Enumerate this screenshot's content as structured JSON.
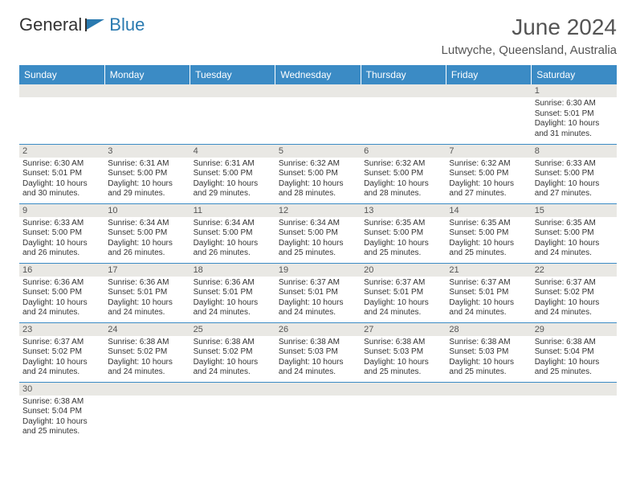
{
  "logo": {
    "part1": "General",
    "part2": "Blue"
  },
  "header": {
    "month_title": "June 2024",
    "location": "Lutwyche, Queensland, Australia"
  },
  "colors": {
    "header_bg": "#3b8bc5",
    "header_text": "#ffffff",
    "daynum_bg": "#e9e8e4",
    "border": "#3b8bc5",
    "logo_blue": "#2a7ab0"
  },
  "day_names": [
    "Sunday",
    "Monday",
    "Tuesday",
    "Wednesday",
    "Thursday",
    "Friday",
    "Saturday"
  ],
  "weeks": [
    [
      {
        "n": "",
        "sunrise": "",
        "sunset": "",
        "daylight": ""
      },
      {
        "n": "",
        "sunrise": "",
        "sunset": "",
        "daylight": ""
      },
      {
        "n": "",
        "sunrise": "",
        "sunset": "",
        "daylight": ""
      },
      {
        "n": "",
        "sunrise": "",
        "sunset": "",
        "daylight": ""
      },
      {
        "n": "",
        "sunrise": "",
        "sunset": "",
        "daylight": ""
      },
      {
        "n": "",
        "sunrise": "",
        "sunset": "",
        "daylight": ""
      },
      {
        "n": "1",
        "sunrise": "Sunrise: 6:30 AM",
        "sunset": "Sunset: 5:01 PM",
        "daylight": "Daylight: 10 hours and 31 minutes."
      }
    ],
    [
      {
        "n": "2",
        "sunrise": "Sunrise: 6:30 AM",
        "sunset": "Sunset: 5:01 PM",
        "daylight": "Daylight: 10 hours and 30 minutes."
      },
      {
        "n": "3",
        "sunrise": "Sunrise: 6:31 AM",
        "sunset": "Sunset: 5:00 PM",
        "daylight": "Daylight: 10 hours and 29 minutes."
      },
      {
        "n": "4",
        "sunrise": "Sunrise: 6:31 AM",
        "sunset": "Sunset: 5:00 PM",
        "daylight": "Daylight: 10 hours and 29 minutes."
      },
      {
        "n": "5",
        "sunrise": "Sunrise: 6:32 AM",
        "sunset": "Sunset: 5:00 PM",
        "daylight": "Daylight: 10 hours and 28 minutes."
      },
      {
        "n": "6",
        "sunrise": "Sunrise: 6:32 AM",
        "sunset": "Sunset: 5:00 PM",
        "daylight": "Daylight: 10 hours and 28 minutes."
      },
      {
        "n": "7",
        "sunrise": "Sunrise: 6:32 AM",
        "sunset": "Sunset: 5:00 PM",
        "daylight": "Daylight: 10 hours and 27 minutes."
      },
      {
        "n": "8",
        "sunrise": "Sunrise: 6:33 AM",
        "sunset": "Sunset: 5:00 PM",
        "daylight": "Daylight: 10 hours and 27 minutes."
      }
    ],
    [
      {
        "n": "9",
        "sunrise": "Sunrise: 6:33 AM",
        "sunset": "Sunset: 5:00 PM",
        "daylight": "Daylight: 10 hours and 26 minutes."
      },
      {
        "n": "10",
        "sunrise": "Sunrise: 6:34 AM",
        "sunset": "Sunset: 5:00 PM",
        "daylight": "Daylight: 10 hours and 26 minutes."
      },
      {
        "n": "11",
        "sunrise": "Sunrise: 6:34 AM",
        "sunset": "Sunset: 5:00 PM",
        "daylight": "Daylight: 10 hours and 26 minutes."
      },
      {
        "n": "12",
        "sunrise": "Sunrise: 6:34 AM",
        "sunset": "Sunset: 5:00 PM",
        "daylight": "Daylight: 10 hours and 25 minutes."
      },
      {
        "n": "13",
        "sunrise": "Sunrise: 6:35 AM",
        "sunset": "Sunset: 5:00 PM",
        "daylight": "Daylight: 10 hours and 25 minutes."
      },
      {
        "n": "14",
        "sunrise": "Sunrise: 6:35 AM",
        "sunset": "Sunset: 5:00 PM",
        "daylight": "Daylight: 10 hours and 25 minutes."
      },
      {
        "n": "15",
        "sunrise": "Sunrise: 6:35 AM",
        "sunset": "Sunset: 5:00 PM",
        "daylight": "Daylight: 10 hours and 24 minutes."
      }
    ],
    [
      {
        "n": "16",
        "sunrise": "Sunrise: 6:36 AM",
        "sunset": "Sunset: 5:00 PM",
        "daylight": "Daylight: 10 hours and 24 minutes."
      },
      {
        "n": "17",
        "sunrise": "Sunrise: 6:36 AM",
        "sunset": "Sunset: 5:01 PM",
        "daylight": "Daylight: 10 hours and 24 minutes."
      },
      {
        "n": "18",
        "sunrise": "Sunrise: 6:36 AM",
        "sunset": "Sunset: 5:01 PM",
        "daylight": "Daylight: 10 hours and 24 minutes."
      },
      {
        "n": "19",
        "sunrise": "Sunrise: 6:37 AM",
        "sunset": "Sunset: 5:01 PM",
        "daylight": "Daylight: 10 hours and 24 minutes."
      },
      {
        "n": "20",
        "sunrise": "Sunrise: 6:37 AM",
        "sunset": "Sunset: 5:01 PM",
        "daylight": "Daylight: 10 hours and 24 minutes."
      },
      {
        "n": "21",
        "sunrise": "Sunrise: 6:37 AM",
        "sunset": "Sunset: 5:01 PM",
        "daylight": "Daylight: 10 hours and 24 minutes."
      },
      {
        "n": "22",
        "sunrise": "Sunrise: 6:37 AM",
        "sunset": "Sunset: 5:02 PM",
        "daylight": "Daylight: 10 hours and 24 minutes."
      }
    ],
    [
      {
        "n": "23",
        "sunrise": "Sunrise: 6:37 AM",
        "sunset": "Sunset: 5:02 PM",
        "daylight": "Daylight: 10 hours and 24 minutes."
      },
      {
        "n": "24",
        "sunrise": "Sunrise: 6:38 AM",
        "sunset": "Sunset: 5:02 PM",
        "daylight": "Daylight: 10 hours and 24 minutes."
      },
      {
        "n": "25",
        "sunrise": "Sunrise: 6:38 AM",
        "sunset": "Sunset: 5:02 PM",
        "daylight": "Daylight: 10 hours and 24 minutes."
      },
      {
        "n": "26",
        "sunrise": "Sunrise: 6:38 AM",
        "sunset": "Sunset: 5:03 PM",
        "daylight": "Daylight: 10 hours and 24 minutes."
      },
      {
        "n": "27",
        "sunrise": "Sunrise: 6:38 AM",
        "sunset": "Sunset: 5:03 PM",
        "daylight": "Daylight: 10 hours and 25 minutes."
      },
      {
        "n": "28",
        "sunrise": "Sunrise: 6:38 AM",
        "sunset": "Sunset: 5:03 PM",
        "daylight": "Daylight: 10 hours and 25 minutes."
      },
      {
        "n": "29",
        "sunrise": "Sunrise: 6:38 AM",
        "sunset": "Sunset: 5:04 PM",
        "daylight": "Daylight: 10 hours and 25 minutes."
      }
    ],
    [
      {
        "n": "30",
        "sunrise": "Sunrise: 6:38 AM",
        "sunset": "Sunset: 5:04 PM",
        "daylight": "Daylight: 10 hours and 25 minutes."
      },
      {
        "n": "",
        "sunrise": "",
        "sunset": "",
        "daylight": ""
      },
      {
        "n": "",
        "sunrise": "",
        "sunset": "",
        "daylight": ""
      },
      {
        "n": "",
        "sunrise": "",
        "sunset": "",
        "daylight": ""
      },
      {
        "n": "",
        "sunrise": "",
        "sunset": "",
        "daylight": ""
      },
      {
        "n": "",
        "sunrise": "",
        "sunset": "",
        "daylight": ""
      },
      {
        "n": "",
        "sunrise": "",
        "sunset": "",
        "daylight": ""
      }
    ]
  ]
}
